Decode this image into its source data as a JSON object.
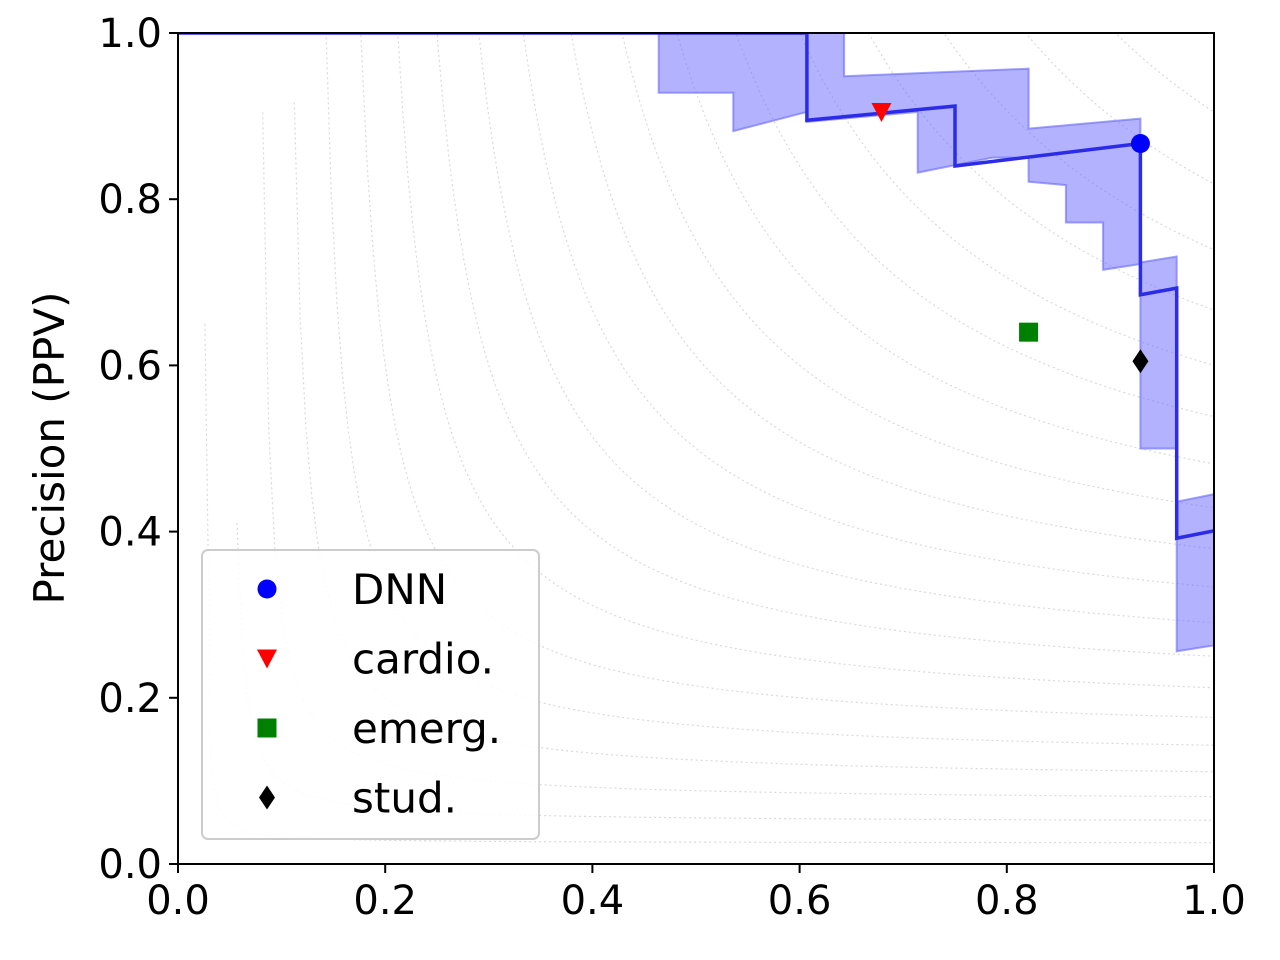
{
  "chart_data": {
    "type": "line",
    "title": "",
    "xlabel": "",
    "ylabel": "Precision (PPV)",
    "xlim": [
      0.0,
      1.0
    ],
    "ylim": [
      0.0,
      1.0
    ],
    "xticks": [
      "0.0",
      "0.2",
      "0.4",
      "0.6",
      "0.8",
      "1.0"
    ],
    "yticks": [
      "0.0",
      "0.2",
      "0.4",
      "0.6",
      "0.8",
      "1.0"
    ],
    "grid": "iso-F1 dotted contours",
    "legend_position": "lower-left",
    "curve": {
      "color": "#2b2be8",
      "points": [
        [
          0.0,
          1.0
        ],
        [
          0.607,
          1.0
        ],
        [
          0.607,
          0.895
        ],
        [
          0.75,
          0.912
        ],
        [
          0.75,
          0.84
        ],
        [
          0.929,
          0.867
        ],
        [
          0.929,
          0.685
        ],
        [
          0.964,
          0.693
        ],
        [
          0.964,
          0.392
        ],
        [
          1.0,
          0.401
        ]
      ]
    },
    "band": {
      "color": "#6666ff",
      "upper": [
        [
          0.464,
          1.0
        ],
        [
          0.643,
          1.0
        ],
        [
          0.643,
          0.948
        ],
        [
          0.821,
          0.957
        ],
        [
          0.821,
          0.885
        ],
        [
          0.929,
          0.897
        ],
        [
          0.929,
          0.724
        ],
        [
          0.964,
          0.731
        ],
        [
          0.964,
          0.436
        ],
        [
          1.0,
          0.445
        ]
      ],
      "lower": [
        [
          1.0,
          0.263
        ],
        [
          0.964,
          0.256
        ],
        [
          0.964,
          0.5
        ],
        [
          0.929,
          0.5
        ],
        [
          0.929,
          0.722
        ],
        [
          0.893,
          0.715
        ],
        [
          0.893,
          0.772
        ],
        [
          0.857,
          0.772
        ],
        [
          0.857,
          0.817
        ],
        [
          0.821,
          0.821
        ],
        [
          0.821,
          0.85
        ],
        [
          0.786,
          0.85
        ],
        [
          0.714,
          0.832
        ],
        [
          0.714,
          0.905
        ],
        [
          0.607,
          0.893
        ],
        [
          0.607,
          0.905
        ],
        [
          0.536,
          0.882
        ],
        [
          0.536,
          0.928
        ],
        [
          0.464,
          0.928
        ],
        [
          0.464,
          1.0
        ]
      ]
    },
    "series": [
      {
        "name": "DNN",
        "marker": "circle",
        "color": "#0000ff",
        "x": 0.929,
        "y": 0.867
      },
      {
        "name": "cardio.",
        "marker": "triangle-down",
        "color": "#ff0000",
        "x": 0.679,
        "y": 0.905
      },
      {
        "name": "emerg.",
        "marker": "square",
        "color": "#008000",
        "x": 0.821,
        "y": 0.64
      },
      {
        "name": "stud.",
        "marker": "diamond",
        "color": "#000000",
        "x": 0.929,
        "y": 0.605
      }
    ]
  }
}
